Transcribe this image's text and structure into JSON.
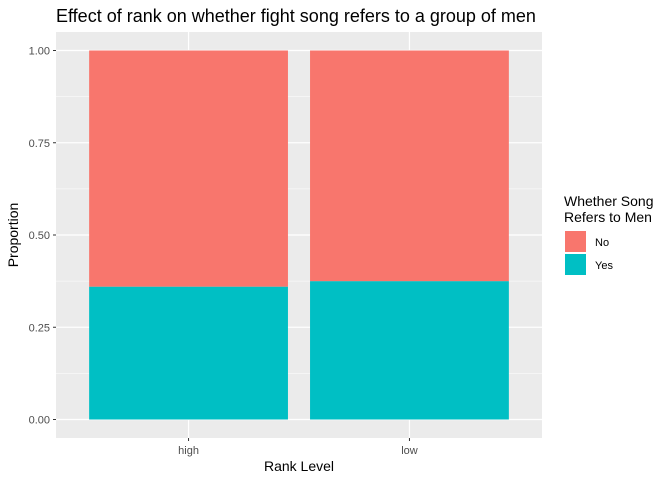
{
  "chart_data": {
    "type": "bar",
    "stacked": true,
    "title": "Effect of rank on whether fight song refers to a group of men",
    "xlabel": "Rank Level",
    "ylabel": "Proportion",
    "categories": [
      "high",
      "low"
    ],
    "series": [
      {
        "name": "Yes",
        "values": [
          0.36,
          0.375
        ],
        "color": "#00BFC4"
      },
      {
        "name": "No",
        "values": [
          0.64,
          0.625
        ],
        "color": "#F8766D"
      }
    ],
    "ylim": [
      0,
      1
    ],
    "yticks": [
      0,
      0.25,
      0.5,
      0.75,
      1
    ],
    "ytick_labels": [
      "0.00",
      "0.25",
      "0.50",
      "0.75",
      "1.00"
    ],
    "grid": true,
    "panel_background": "#EBEBEB",
    "legend": {
      "title_lines": [
        "Whether Song",
        "Refers to Men"
      ],
      "placement": "right",
      "entries": [
        {
          "label": "No",
          "color": "#F8766D"
        },
        {
          "label": "Yes",
          "color": "#00BFC4"
        }
      ]
    }
  }
}
